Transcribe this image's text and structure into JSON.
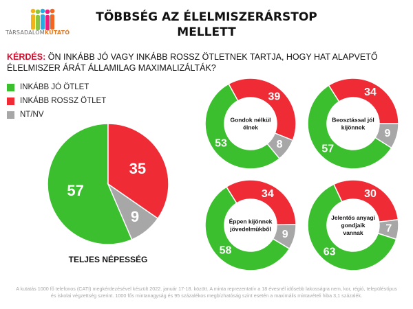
{
  "header": {
    "logo_prefix": "TÁRSADALOM",
    "logo_suffix": "KUTATÓ",
    "title_line1": "TÖBBSÉG AZ ÉLELMISZERÁRSTOP",
    "title_line2": "MELLETT",
    "question_label": "KÉRDÉS:",
    "question_text": "Ön inkább jó vagy inkább rossz ötletnek tartja, hogy hat alapvető élelmiszer árát államilag maximalizálták?"
  },
  "legend": [
    {
      "label": "INKÁBB JÓ ÖTLET",
      "color": "#3bbf2e"
    },
    {
      "label": "INKÁBB ROSSZ ÖTLET",
      "color": "#ef2b36"
    },
    {
      "label": "NT/NV",
      "color": "#a7a7a7"
    }
  ],
  "chart_data": [
    {
      "type": "pie",
      "title": "TELJES NÉPESSÉG",
      "categories": [
        "INKÁBB JÓ ÖTLET",
        "INKÁBB ROSSZ ÖTLET",
        "NT/NV"
      ],
      "values": [
        57,
        35,
        9
      ]
    },
    {
      "type": "pie",
      "donut": true,
      "title": "Gondok nélkül élnek",
      "categories": [
        "INKÁBB JÓ ÖTLET",
        "INKÁBB ROSSZ ÖTLET",
        "NT/NV"
      ],
      "values": [
        53,
        39,
        8
      ]
    },
    {
      "type": "pie",
      "donut": true,
      "title": "Beosztással jól kijönnek",
      "categories": [
        "INKÁBB JÓ ÖTLET",
        "INKÁBB ROSSZ ÖTLET",
        "NT/NV"
      ],
      "values": [
        57,
        34,
        9
      ]
    },
    {
      "type": "pie",
      "donut": true,
      "title": "Éppen kijönnek jövedelmükből",
      "categories": [
        "INKÁBB JÓ ÖTLET",
        "INKÁBB ROSSZ ÖTLET",
        "NT/NV"
      ],
      "values": [
        58,
        34,
        9
      ]
    },
    {
      "type": "pie",
      "donut": true,
      "title": "Jelentős anyagi gondjaik vannak",
      "categories": [
        "INKÁBB JÓ ÖTLET",
        "INKÁBB ROSSZ ÖTLET",
        "NT/NV"
      ],
      "values": [
        63,
        30,
        7
      ]
    }
  ],
  "footnote": "A kutatás 1000 fő telefonos (CATI) megkérdezésével készült 2022. január 17-18. között. A minta reprezentatív a 18 évesnél idősebb lakosságra nem, kor, régió, településtípus és iskolai végzettség szerint. 1000 fős mintanagyság és 95 százalékos megbízhatóság szint esetén a maximális mintavételi hiba 3,1 százalék."
}
